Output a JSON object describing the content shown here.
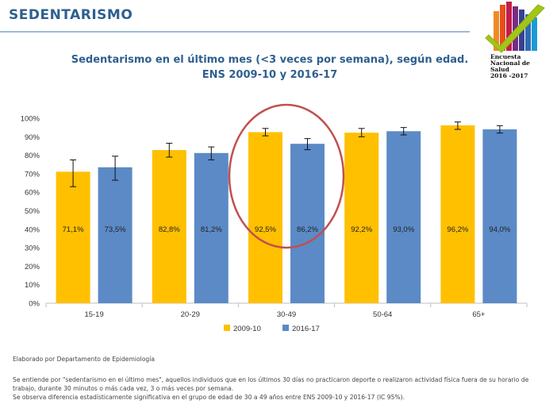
{
  "header": {
    "title": "SEDENTARISMO"
  },
  "logo": {
    "lines": [
      "Encuesta",
      "Nacional de",
      "Salud",
      "2016 -2017"
    ]
  },
  "chart_data": {
    "type": "bar",
    "title": "Sedentarismo en el último mes (<3 veces por semana), según edad.",
    "subtitle": "ENS 2009-10 y 2016-17",
    "categories": [
      "15-19",
      "20-29",
      "30-49",
      "50-64",
      "65+"
    ],
    "series": [
      {
        "name": "2009-10",
        "color": "#ffc000",
        "values": [
          71.1,
          82.8,
          92.5,
          92.2,
          96.2
        ],
        "labels": [
          "71,1%",
          "82,8%",
          "92,5%",
          "92,2%",
          "96,2%"
        ],
        "ci_low": [
          63.0,
          79.0,
          90.5,
          90.0,
          94.0
        ],
        "ci_high": [
          77.5,
          86.5,
          94.5,
          94.5,
          98.0
        ]
      },
      {
        "name": "2016-17",
        "color": "#5b8ac6",
        "values": [
          73.5,
          81.2,
          86.2,
          93.0,
          94.0
        ],
        "labels": [
          "73,5%",
          "81,2%",
          "86,2%",
          "93,0%",
          "94,0%"
        ],
        "ci_low": [
          66.5,
          77.5,
          83.0,
          91.0,
          92.0
        ],
        "ci_high": [
          79.5,
          84.5,
          89.0,
          95.0,
          96.0
        ]
      }
    ],
    "ylim": [
      0,
      100
    ],
    "yticks": [
      0,
      10,
      20,
      30,
      40,
      50,
      60,
      70,
      80,
      90,
      100
    ],
    "ytick_labels": [
      "0%",
      "10%",
      "20%",
      "30%",
      "40%",
      "50%",
      "60%",
      "70%",
      "80%",
      "90%",
      "100%"
    ],
    "grid": false,
    "legend_position": "bottom",
    "highlight_category": "30-49",
    "highlight_color": "#c0504d"
  },
  "notes": {
    "credit": "Elaborado por Departamento de Epidemiología",
    "definition_line1": "Se entiende por \"sedentarismo en el último mes\", aquellos individuos que en los últimos 30 días no practicaron deporte o realizaron actividad física fuera de su horario de",
    "definition_line2": "trabajo, durante 30 minutos o más cada vez, 3 o más veces por semana.",
    "significance": "Se observa diferencia estadísticamente significativa en el grupo de edad de 30 a 49 años entre ENS 2009-10 y 2016-17 (IC 95%)."
  }
}
